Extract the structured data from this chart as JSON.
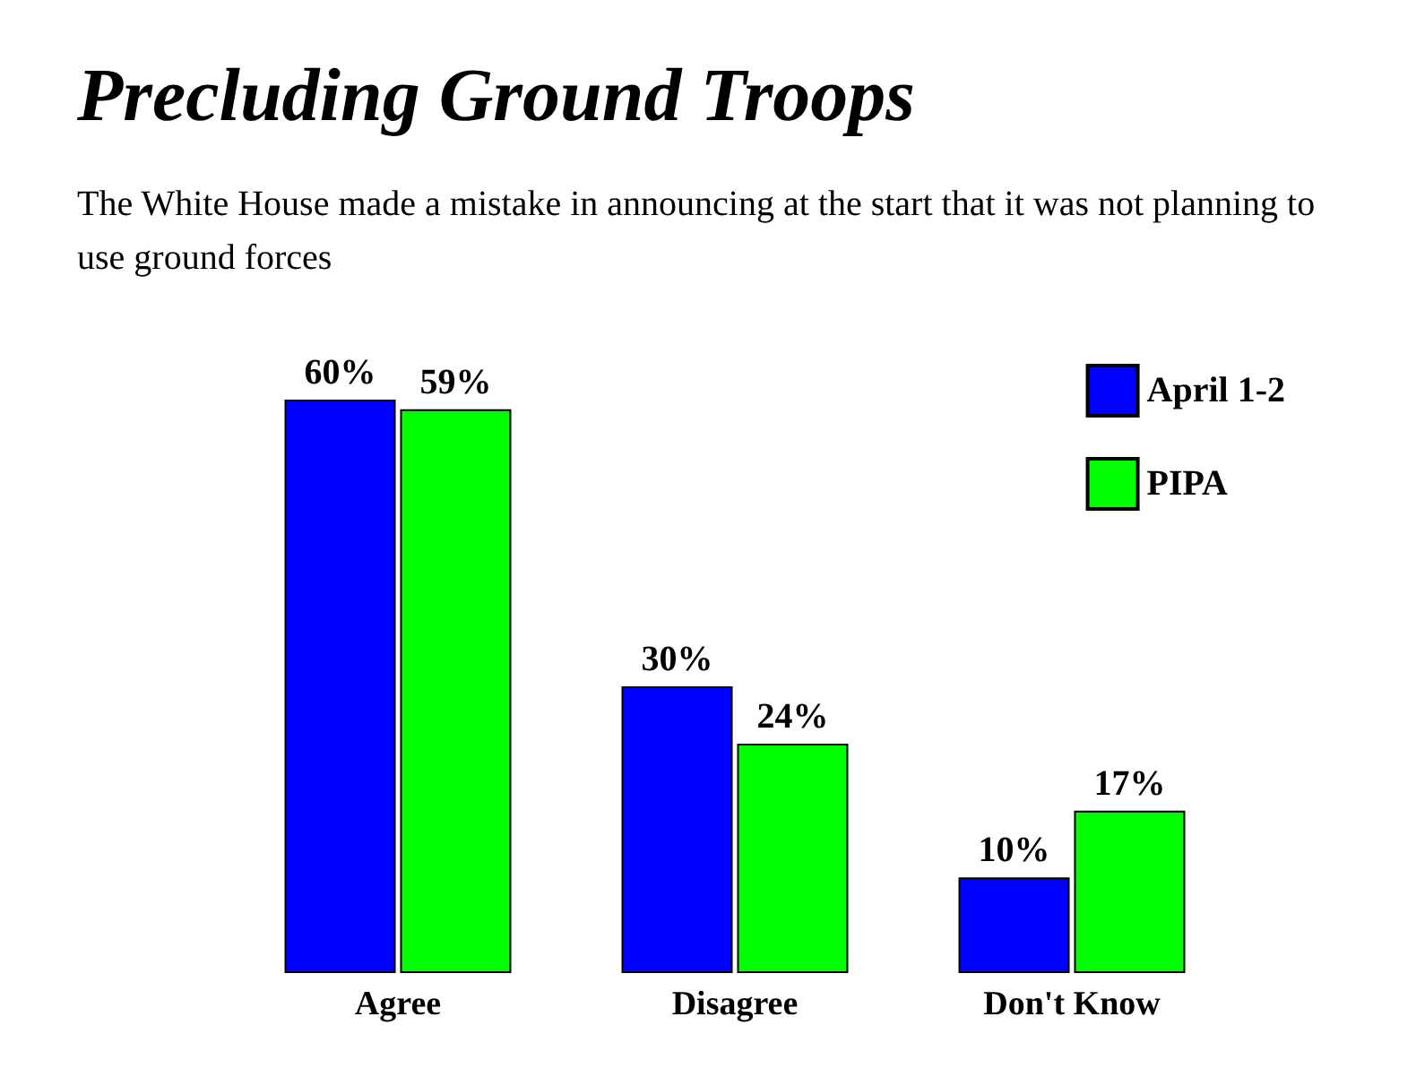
{
  "chart_data": {
    "type": "bar",
    "title": "Precluding Ground Troops",
    "subtitle": "The White House made a mistake in announcing at the start that it was not planning to use ground forces",
    "categories": [
      "Agree",
      "Disagree",
      "Don't Know"
    ],
    "series": [
      {
        "name": "April 1-2",
        "color": "#0000ff",
        "values": [
          60,
          30,
          10
        ],
        "value_labels": [
          "60%",
          "30%",
          "10%"
        ]
      },
      {
        "name": "PIPA",
        "color": "#00ff00",
        "values": [
          59,
          24,
          17
        ],
        "value_labels": [
          "59%",
          "24%",
          "17%"
        ]
      }
    ],
    "legend": "top right"
  }
}
